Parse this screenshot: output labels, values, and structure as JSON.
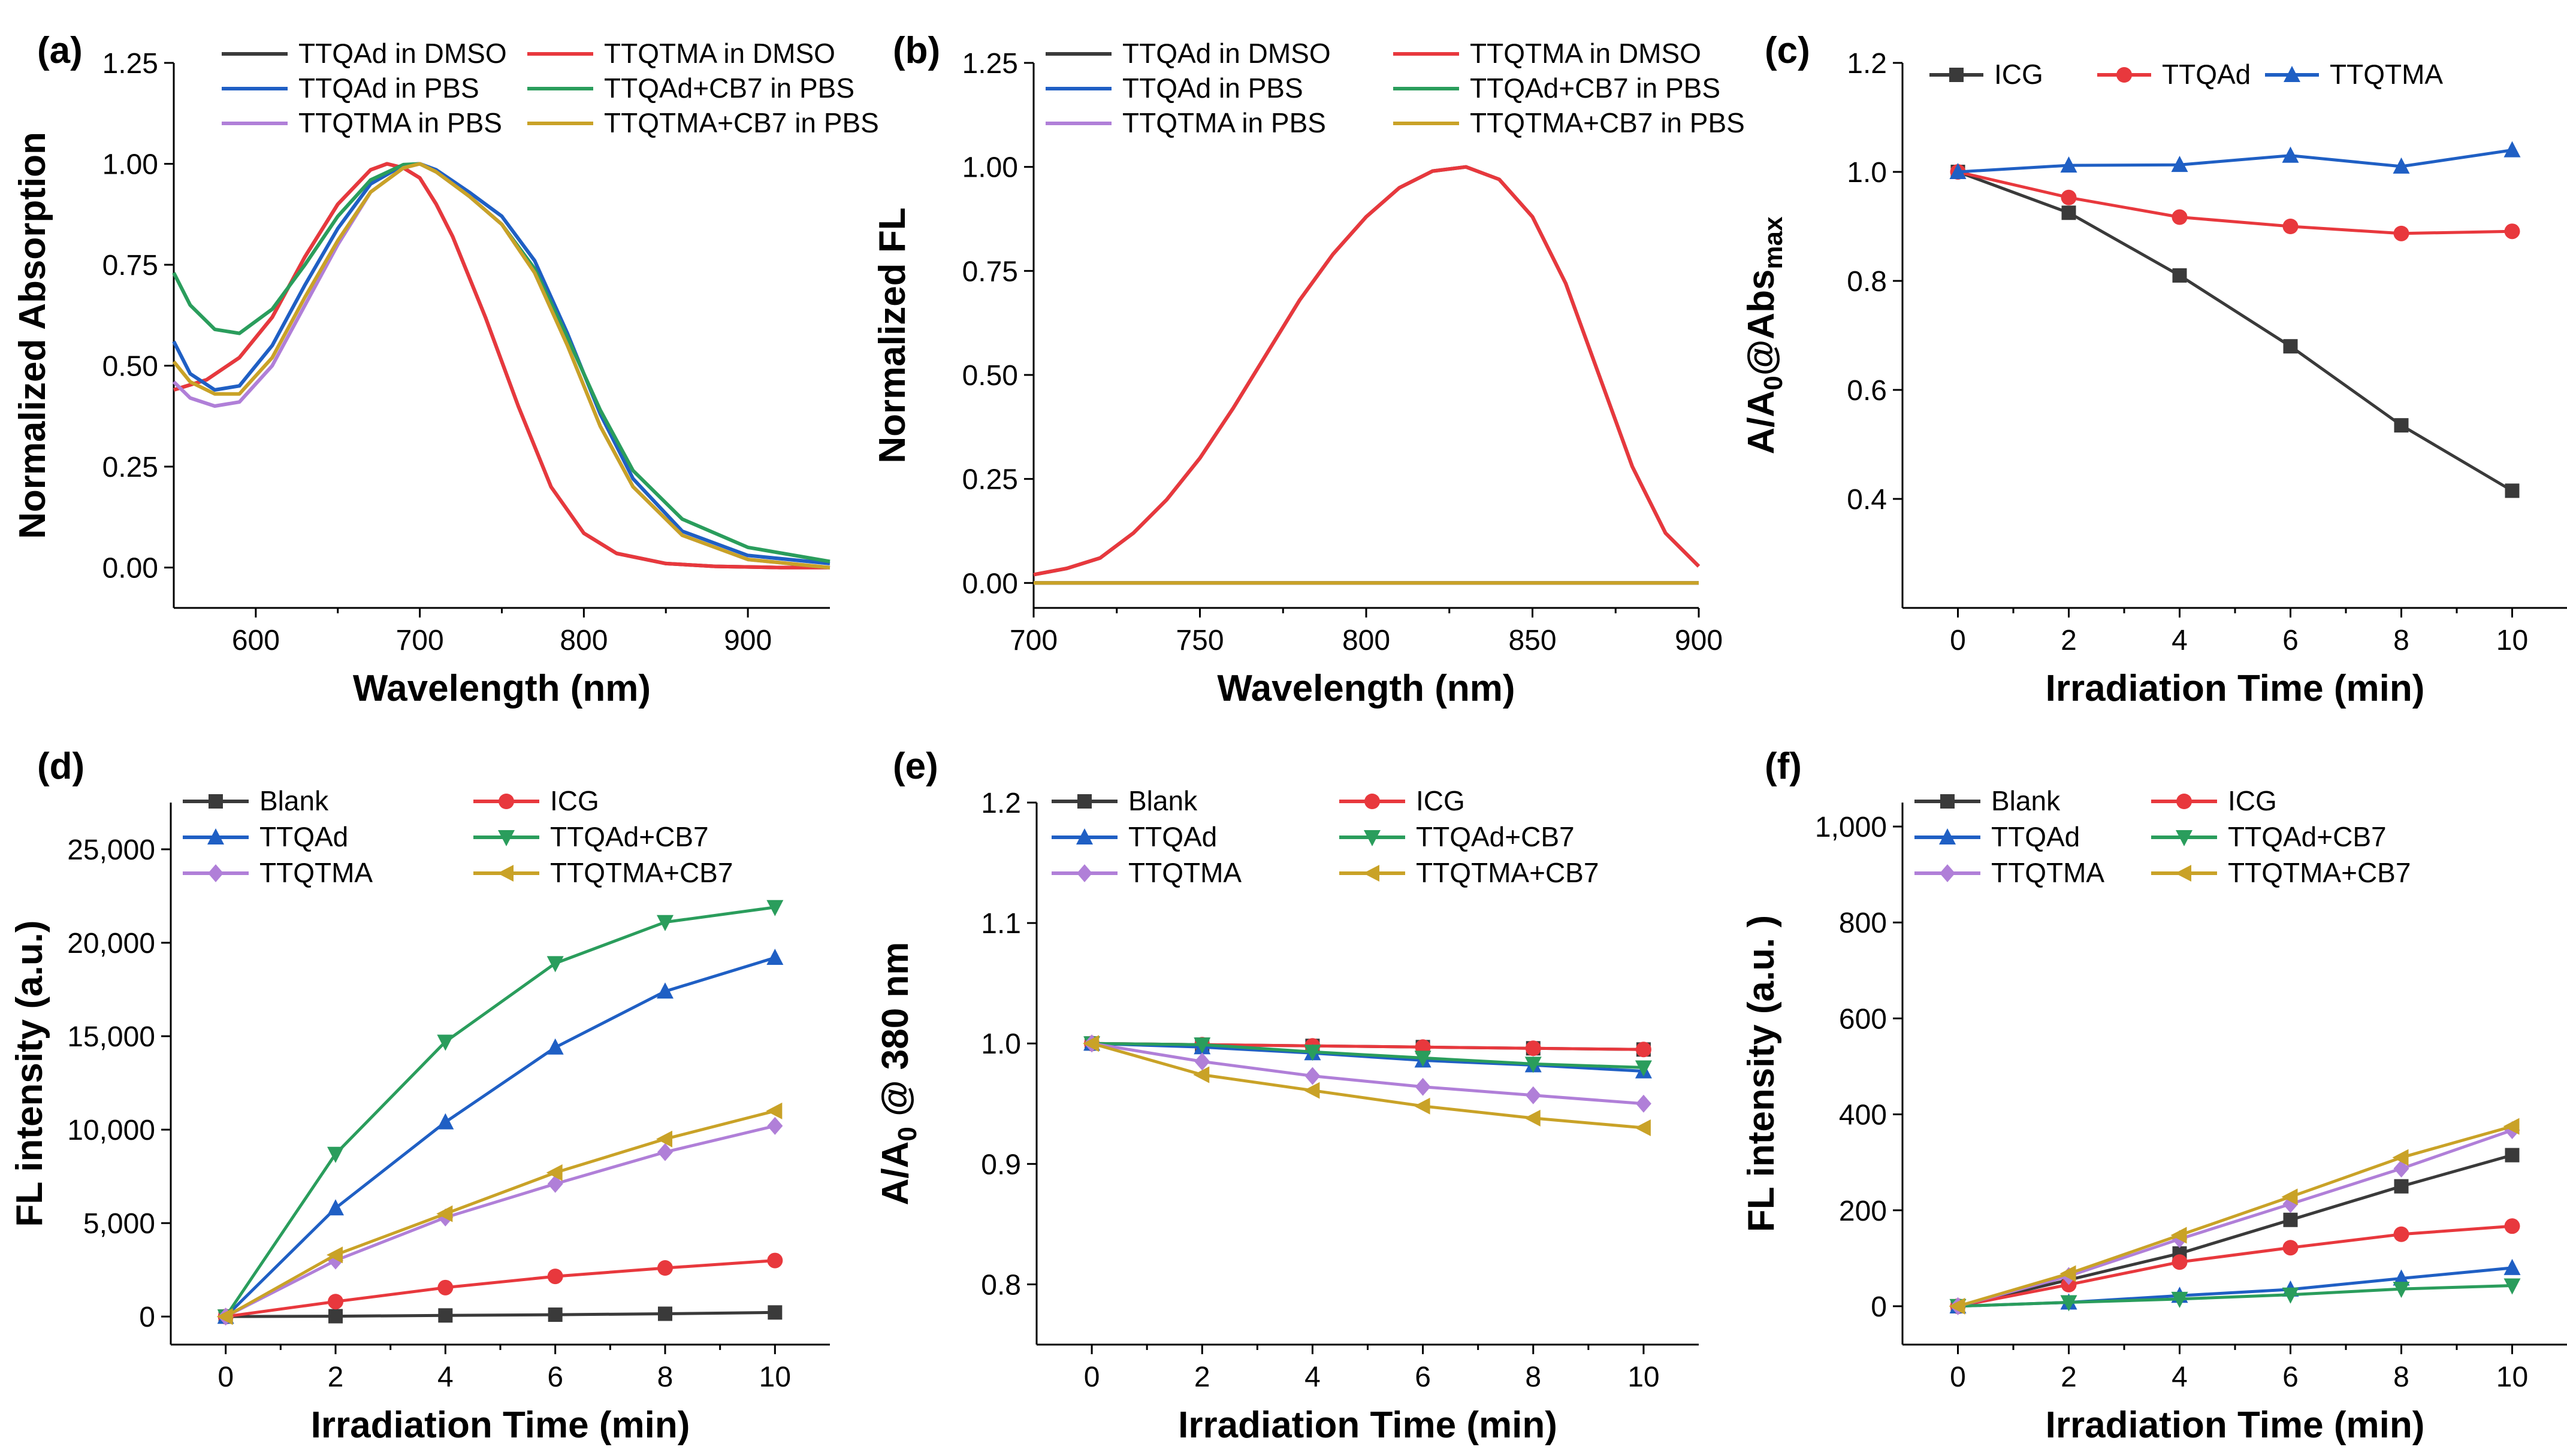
{
  "figure": {
    "panel_labels": [
      "(a)",
      "(b)",
      "(c)",
      "(d)",
      "(e)",
      "(f)"
    ]
  },
  "chart_data": [
    {
      "type": "line",
      "panel": "(a)",
      "xlabel": "Wavelength (nm)",
      "ylabel": "Normalized Absorption",
      "xlim": [
        550,
        950
      ],
      "ylim": [
        -0.1,
        1.25
      ],
      "xticks": [
        "600",
        "700",
        "800",
        "900"
      ],
      "yticks": [
        "0.00",
        "0.25",
        "0.50",
        "0.75",
        "1.00",
        "1.25"
      ],
      "legend_position": "top",
      "series": [
        {
          "name": "TTQAd in DMSO",
          "color": "#3a3a3a",
          "x": [
            550,
            570,
            590,
            610,
            630,
            650,
            670,
            680,
            690,
            700,
            710,
            720,
            740,
            760,
            780,
            800,
            820,
            850,
            880,
            920,
            950
          ],
          "y": [
            0.44,
            0.465,
            0.52,
            0.62,
            0.77,
            0.9,
            0.985,
            1.0,
            0.99,
            0.965,
            0.9,
            0.82,
            0.62,
            0.4,
            0.2,
            0.085,
            0.035,
            0.01,
            0.003,
            0.0,
            0.0
          ]
        },
        {
          "name": "TTQTMA in DMSO",
          "color": "#e8383d",
          "x": [
            550,
            570,
            590,
            610,
            630,
            650,
            670,
            680,
            690,
            700,
            710,
            720,
            740,
            760,
            780,
            800,
            820,
            850,
            880,
            920,
            950
          ],
          "y": [
            0.44,
            0.465,
            0.52,
            0.62,
            0.77,
            0.9,
            0.985,
            1.0,
            0.99,
            0.965,
            0.9,
            0.82,
            0.62,
            0.4,
            0.2,
            0.085,
            0.035,
            0.01,
            0.003,
            0.0,
            0.0
          ]
        },
        {
          "name": "TTQAd in PBS",
          "color": "#1f5fc4",
          "x": [
            550,
            560,
            575,
            590,
            610,
            630,
            650,
            670,
            690,
            700,
            710,
            730,
            750,
            770,
            790,
            810,
            830,
            860,
            900,
            950
          ],
          "y": [
            0.56,
            0.48,
            0.44,
            0.45,
            0.55,
            0.7,
            0.84,
            0.95,
            0.997,
            1.0,
            0.985,
            0.93,
            0.87,
            0.76,
            0.58,
            0.38,
            0.22,
            0.09,
            0.03,
            0.01
          ]
        },
        {
          "name": "TTQAd+CB7 in PBS",
          "color": "#2a9d5c",
          "x": [
            550,
            560,
            575,
            590,
            610,
            630,
            650,
            670,
            690,
            700,
            710,
            730,
            750,
            770,
            790,
            810,
            830,
            860,
            900,
            950
          ],
          "y": [
            0.73,
            0.65,
            0.59,
            0.58,
            0.64,
            0.75,
            0.87,
            0.96,
            0.998,
            1.0,
            0.98,
            0.92,
            0.85,
            0.74,
            0.57,
            0.39,
            0.24,
            0.12,
            0.05,
            0.015
          ]
        },
        {
          "name": "TTQTMA in PBS",
          "color": "#b07fd8",
          "x": [
            550,
            560,
            575,
            590,
            610,
            630,
            650,
            670,
            690,
            700,
            710,
            730,
            750,
            770,
            790,
            810,
            830,
            860,
            900,
            950
          ],
          "y": [
            0.46,
            0.42,
            0.4,
            0.41,
            0.5,
            0.65,
            0.8,
            0.93,
            0.99,
            1.0,
            0.98,
            0.92,
            0.85,
            0.73,
            0.55,
            0.35,
            0.2,
            0.08,
            0.02,
            0.0
          ]
        },
        {
          "name": "TTQTMA+CB7 in PBS",
          "color": "#c9a227",
          "x": [
            550,
            560,
            575,
            590,
            610,
            630,
            650,
            670,
            690,
            700,
            710,
            730,
            750,
            770,
            790,
            810,
            830,
            860,
            900,
            950
          ],
          "y": [
            0.51,
            0.46,
            0.43,
            0.43,
            0.52,
            0.67,
            0.81,
            0.93,
            0.99,
            1.0,
            0.98,
            0.92,
            0.85,
            0.73,
            0.55,
            0.35,
            0.2,
            0.08,
            0.02,
            0.0
          ]
        }
      ]
    },
    {
      "type": "line",
      "panel": "(b)",
      "xlabel": "Wavelength (nm)",
      "ylabel": "Normalized FL",
      "xlim": [
        700,
        900
      ],
      "ylim": [
        -0.06,
        1.25
      ],
      "xticks": [
        "700",
        "750",
        "800",
        "850",
        "900"
      ],
      "yticks": [
        "0.00",
        "0.25",
        "0.50",
        "0.75",
        "1.00",
        "1.25"
      ],
      "legend_position": "top",
      "series": [
        {
          "name": "TTQAd in DMSO",
          "color": "#3a3a3a",
          "x": [
            700,
            710,
            720,
            730,
            740,
            750,
            760,
            770,
            780,
            790,
            800,
            810,
            820,
            830,
            840,
            850,
            860,
            870,
            880,
            890,
            900
          ],
          "y": [
            0.02,
            0.035,
            0.06,
            0.12,
            0.2,
            0.3,
            0.42,
            0.55,
            0.68,
            0.79,
            0.88,
            0.95,
            0.99,
            1.0,
            0.97,
            0.88,
            0.72,
            0.5,
            0.28,
            0.12,
            0.04
          ]
        },
        {
          "name": "TTQTMA in DMSO",
          "color": "#e8383d",
          "x": [
            700,
            710,
            720,
            730,
            740,
            750,
            760,
            770,
            780,
            790,
            800,
            810,
            820,
            830,
            840,
            850,
            860,
            870,
            880,
            890,
            900
          ],
          "y": [
            0.02,
            0.035,
            0.06,
            0.12,
            0.2,
            0.3,
            0.42,
            0.55,
            0.68,
            0.79,
            0.88,
            0.95,
            0.99,
            1.0,
            0.97,
            0.88,
            0.72,
            0.5,
            0.28,
            0.12,
            0.04
          ]
        },
        {
          "name": "TTQAd in PBS",
          "color": "#1f5fc4",
          "x": [
            700,
            900
          ],
          "y": [
            0.0,
            0.0
          ]
        },
        {
          "name": "TTQAd+CB7 in PBS",
          "color": "#2a9d5c",
          "x": [
            700,
            900
          ],
          "y": [
            0.0,
            0.0
          ]
        },
        {
          "name": "TTQTMA in PBS",
          "color": "#b07fd8",
          "x": [
            700,
            900
          ],
          "y": [
            0.0,
            0.0
          ]
        },
        {
          "name": "TTQTMA+CB7 in PBS",
          "color": "#c9a227",
          "x": [
            700,
            900
          ],
          "y": [
            0.0,
            0.0
          ]
        }
      ]
    },
    {
      "type": "line",
      "panel": "(c)",
      "xlabel": "Irradiation Time (min)",
      "ylabel": "A/A0@Absmax",
      "xlim": [
        -1,
        11
      ],
      "ylim": [
        0.2,
        1.2
      ],
      "xticks": [
        "0",
        "2",
        "4",
        "6",
        "8",
        "10"
      ],
      "yticks": [
        "0.4",
        "0.6",
        "0.8",
        "1.0",
        "1.2"
      ],
      "legend_position": "top",
      "series": [
        {
          "name": "ICG",
          "color": "#3a3a3a",
          "marker": "square",
          "x": [
            0,
            2,
            4,
            6,
            8,
            10
          ],
          "y": [
            1.0,
            0.925,
            0.81,
            0.68,
            0.535,
            0.415
          ]
        },
        {
          "name": "TTQAd",
          "color": "#e8383d",
          "marker": "circle",
          "x": [
            0,
            2,
            4,
            6,
            8,
            10
          ],
          "y": [
            1.0,
            0.953,
            0.917,
            0.9,
            0.887,
            0.891
          ]
        },
        {
          "name": "TTQTMA",
          "color": "#1f5fc4",
          "marker": "triangle-up",
          "x": [
            0,
            2,
            4,
            6,
            8,
            10
          ],
          "y": [
            1.0,
            1.012,
            1.013,
            1.03,
            1.01,
            1.04
          ]
        }
      ]
    },
    {
      "type": "line",
      "panel": "(d)",
      "xlabel": "Irradiation Time (min)",
      "ylabel": "FL intensity (a.u.)",
      "xlim": [
        -1,
        11
      ],
      "ylim": [
        -1500,
        27500
      ],
      "xticks": [
        "0",
        "2",
        "4",
        "6",
        "8",
        "10"
      ],
      "yticks": [
        "0",
        "5,000",
        "10,000",
        "15,000",
        "20,000",
        "25,000"
      ],
      "legend_position": "top",
      "series": [
        {
          "name": "Blank",
          "color": "#3a3a3a",
          "marker": "square",
          "x": [
            0,
            2,
            4,
            6,
            8,
            10
          ],
          "y": [
            0,
            20,
            60,
            100,
            150,
            220
          ]
        },
        {
          "name": "ICG",
          "color": "#e8383d",
          "marker": "circle",
          "x": [
            0,
            2,
            4,
            6,
            8,
            10
          ],
          "y": [
            0,
            800,
            1550,
            2150,
            2600,
            3000
          ]
        },
        {
          "name": "TTQAd",
          "color": "#1f5fc4",
          "marker": "triangle-up",
          "x": [
            0,
            2,
            4,
            6,
            8,
            10
          ],
          "y": [
            0,
            5800,
            10400,
            14400,
            17400,
            19200
          ]
        },
        {
          "name": "TTQAd+CB7",
          "color": "#2a9d5c",
          "marker": "triangle-down",
          "x": [
            0,
            2,
            4,
            6,
            8,
            10
          ],
          "y": [
            0,
            8700,
            14700,
            18900,
            21100,
            21900
          ]
        },
        {
          "name": "TTQTMA",
          "color": "#b07fd8",
          "marker": "diamond",
          "x": [
            0,
            2,
            4,
            6,
            8,
            10
          ],
          "y": [
            0,
            3000,
            5300,
            7100,
            8800,
            10200
          ]
        },
        {
          "name": "TTQTMA+CB7",
          "color": "#c9a227",
          "marker": "triangle-left",
          "x": [
            0,
            2,
            4,
            6,
            8,
            10
          ],
          "y": [
            0,
            3300,
            5500,
            7700,
            9500,
            11000
          ]
        }
      ]
    },
    {
      "type": "line",
      "panel": "(e)",
      "xlabel": "Irradiation Time (min)",
      "ylabel": "A/A0 @ 380 nm",
      "xlim": [
        -1,
        11
      ],
      "ylim": [
        0.75,
        1.2
      ],
      "xticks": [
        "0",
        "2",
        "4",
        "6",
        "8",
        "10"
      ],
      "yticks": [
        "0.8",
        "0.9",
        "1.0",
        "1.1",
        "1.2"
      ],
      "legend_position": "top",
      "series": [
        {
          "name": "Blank",
          "color": "#3a3a3a",
          "marker": "square",
          "x": [
            0,
            2,
            4,
            6,
            8,
            10
          ],
          "y": [
            1.0,
            0.999,
            0.998,
            0.997,
            0.996,
            0.995
          ]
        },
        {
          "name": "ICG",
          "color": "#e8383d",
          "marker": "circle",
          "x": [
            0,
            2,
            4,
            6,
            8,
            10
          ],
          "y": [
            1.0,
            0.999,
            0.998,
            0.997,
            0.996,
            0.995
          ]
        },
        {
          "name": "TTQAd",
          "color": "#1f5fc4",
          "marker": "triangle-up",
          "x": [
            0,
            2,
            4,
            6,
            8,
            10
          ],
          "y": [
            1.0,
            0.997,
            0.992,
            0.986,
            0.982,
            0.977
          ]
        },
        {
          "name": "TTQAd+CB7",
          "color": "#2a9d5c",
          "marker": "triangle-down",
          "x": [
            0,
            2,
            4,
            6,
            8,
            10
          ],
          "y": [
            1.0,
            0.999,
            0.993,
            0.988,
            0.983,
            0.98
          ]
        },
        {
          "name": "TTQTMA",
          "color": "#b07fd8",
          "marker": "diamond",
          "x": [
            0,
            2,
            4,
            6,
            8,
            10
          ],
          "y": [
            1.0,
            0.985,
            0.973,
            0.964,
            0.957,
            0.95
          ]
        },
        {
          "name": "TTQTMA+CB7",
          "color": "#c9a227",
          "marker": "triangle-left",
          "x": [
            0,
            2,
            4,
            6,
            8,
            10
          ],
          "y": [
            1.0,
            0.974,
            0.961,
            0.948,
            0.938,
            0.93
          ]
        }
      ]
    },
    {
      "type": "line",
      "panel": "(f)",
      "xlabel": "Irradiation Time (min)",
      "ylabel": "FL intensity (a.u. )",
      "xlim": [
        -1,
        11
      ],
      "ylim": [
        -80,
        1050
      ],
      "xticks": [
        "0",
        "2",
        "4",
        "6",
        "8",
        "10"
      ],
      "yticks": [
        "0",
        "200",
        "400",
        "600",
        "800",
        "1,000"
      ],
      "legend_position": "top",
      "series": [
        {
          "name": "Blank",
          "color": "#3a3a3a",
          "marker": "square",
          "x": [
            0,
            2,
            4,
            6,
            8,
            10
          ],
          "y": [
            0,
            55,
            110,
            180,
            250,
            315
          ]
        },
        {
          "name": "ICG",
          "color": "#e8383d",
          "marker": "circle",
          "x": [
            0,
            2,
            4,
            6,
            8,
            10
          ],
          "y": [
            0,
            45,
            92,
            122,
            150,
            167
          ]
        },
        {
          "name": "TTQAd",
          "color": "#1f5fc4",
          "marker": "triangle-up",
          "x": [
            0,
            2,
            4,
            6,
            8,
            10
          ],
          "y": [
            0,
            8,
            22,
            35,
            58,
            80
          ]
        },
        {
          "name": "TTQAd+CB7",
          "color": "#2a9d5c",
          "marker": "triangle-down",
          "x": [
            0,
            2,
            4,
            6,
            8,
            10
          ],
          "y": [
            0,
            8,
            15,
            24,
            36,
            43
          ]
        },
        {
          "name": "TTQTMA",
          "color": "#b07fd8",
          "marker": "diamond",
          "x": [
            0,
            2,
            4,
            6,
            8,
            10
          ],
          "y": [
            0,
            63,
            140,
            213,
            287,
            367
          ]
        },
        {
          "name": "TTQTMA+CB7",
          "color": "#c9a227",
          "marker": "triangle-left",
          "x": [
            0,
            2,
            4,
            6,
            8,
            10
          ],
          "y": [
            0,
            68,
            148,
            228,
            310,
            375
          ]
        }
      ]
    }
  ]
}
